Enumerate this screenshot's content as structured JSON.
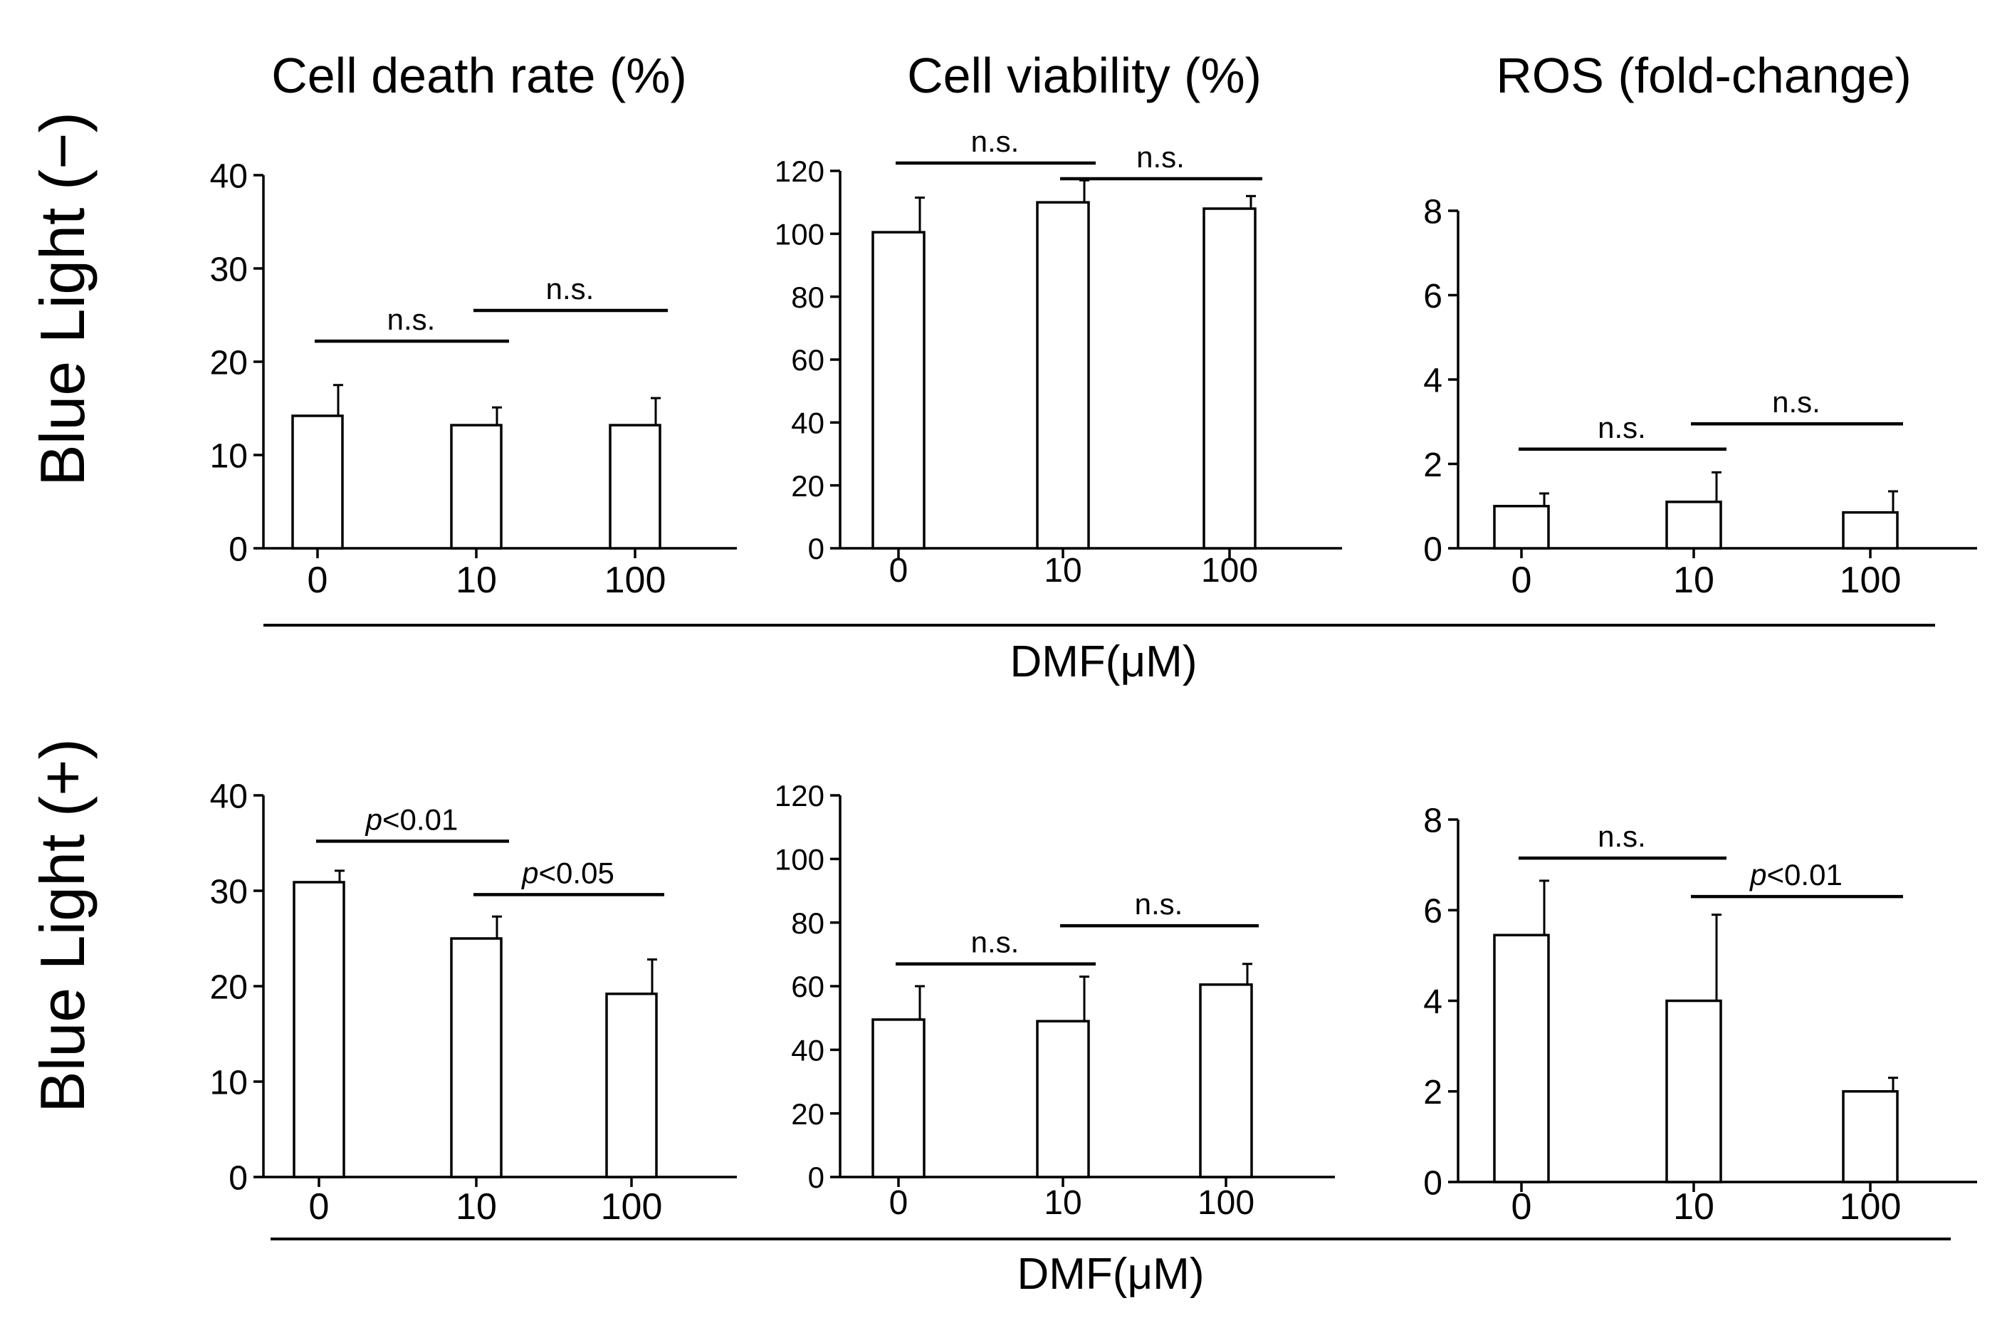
{
  "figure": {
    "column_titles": [
      "Cell death rate (%)",
      "Cell viability (%)",
      "ROS (fold-change)"
    ],
    "row_labels": [
      "Blue Light (−)",
      "Blue Light (+)"
    ],
    "xlabel": "DMF(μM)"
  },
  "chart_data": [
    {
      "id": "death-neg",
      "row": 0,
      "col": 0,
      "type": "bar",
      "title": "Cell death rate (%)",
      "xlabel": "DMF(μM)",
      "ylabel": "",
      "categories": [
        "0",
        "10",
        "100"
      ],
      "values": [
        14.2,
        13.2,
        13.2
      ],
      "errors": [
        3.3,
        1.9,
        2.9
      ],
      "ylim": [
        0,
        40
      ],
      "yticks": [
        0,
        10,
        20,
        30,
        40
      ],
      "annotations": [
        {
          "from": 0,
          "to": 1,
          "level": 22.2,
          "label": "n.s."
        },
        {
          "from": 1,
          "to": 2,
          "level": 25.5,
          "label": "n.s."
        }
      ]
    },
    {
      "id": "viab-neg",
      "row": 0,
      "col": 1,
      "type": "bar",
      "title": "Cell viability (%)",
      "xlabel": "DMF(μM)",
      "ylabel": "",
      "categories": [
        "0",
        "10",
        "100"
      ],
      "values": [
        100.5,
        110,
        108
      ],
      "errors": [
        11,
        7,
        4
      ],
      "ylim": [
        0,
        120
      ],
      "yticks": [
        0,
        20,
        40,
        60,
        80,
        100,
        120
      ],
      "annotations": [
        {
          "from": 0,
          "to": 1,
          "level": 122.5,
          "label": "n.s."
        },
        {
          "from": 1,
          "to": 2,
          "level": 117.5,
          "label": "n.s."
        }
      ]
    },
    {
      "id": "ros-neg",
      "row": 0,
      "col": 2,
      "type": "bar",
      "title": "ROS (fold-change)",
      "xlabel": "DMF(μM)",
      "ylabel": "",
      "categories": [
        "0",
        "10",
        "100"
      ],
      "values": [
        1.0,
        1.1,
        0.85
      ],
      "errors": [
        0.3,
        0.7,
        0.5
      ],
      "ylim": [
        0,
        8
      ],
      "yticks": [
        0,
        2,
        4,
        6,
        8
      ],
      "annotations": [
        {
          "from": 0,
          "to": 1,
          "level": 2.35,
          "label": "n.s."
        },
        {
          "from": 1,
          "to": 2,
          "level": 2.95,
          "label": "n.s."
        }
      ]
    },
    {
      "id": "death-pos",
      "row": 1,
      "col": 0,
      "type": "bar",
      "title": "Cell death rate (%)",
      "xlabel": "DMF(μM)",
      "ylabel": "",
      "categories": [
        "0",
        "10",
        "100"
      ],
      "values": [
        30.9,
        25.0,
        19.2
      ],
      "errors": [
        1.2,
        2.3,
        3.6
      ],
      "ylim": [
        0,
        40
      ],
      "yticks": [
        0,
        10,
        20,
        30,
        40
      ],
      "annotations": [
        {
          "from": 0,
          "to": 1,
          "level": 35.2,
          "label": "p<0.01",
          "italic_prefix": "p",
          "rest": "<0.01"
        },
        {
          "from": 1,
          "to": 2,
          "level": 29.6,
          "label": "p<0.05",
          "italic_prefix": "p",
          "rest": "<0.05"
        }
      ]
    },
    {
      "id": "viab-pos",
      "row": 1,
      "col": 1,
      "type": "bar",
      "title": "Cell viability (%)",
      "xlabel": "DMF(μM)",
      "ylabel": "",
      "categories": [
        "0",
        "10",
        "100"
      ],
      "values": [
        49.5,
        49,
        60.5
      ],
      "errors": [
        10.5,
        14,
        6.5
      ],
      "ylim": [
        0,
        120
      ],
      "yticks": [
        0,
        20,
        40,
        60,
        80,
        100,
        120
      ],
      "annotations": [
        {
          "from": 0,
          "to": 1,
          "level": 67,
          "label": "n.s."
        },
        {
          "from": 1,
          "to": 2,
          "level": 79,
          "label": "n.s."
        }
      ]
    },
    {
      "id": "ros-pos",
      "row": 1,
      "col": 2,
      "type": "bar",
      "title": "ROS (fold-change)",
      "xlabel": "DMF(μM)",
      "ylabel": "",
      "categories": [
        "0",
        "10",
        "100"
      ],
      "values": [
        5.45,
        4.0,
        2.0
      ],
      "errors": [
        1.2,
        1.9,
        0.3
      ],
      "ylim": [
        0,
        8
      ],
      "yticks": [
        0,
        2,
        4,
        6,
        8
      ],
      "annotations": [
        {
          "from": 0,
          "to": 1,
          "level": 7.15,
          "label": "n.s."
        },
        {
          "from": 1,
          "to": 2,
          "level": 6.3,
          "label": "p<0.01",
          "italic_prefix": "p",
          "rest": "<0.01"
        }
      ]
    }
  ]
}
